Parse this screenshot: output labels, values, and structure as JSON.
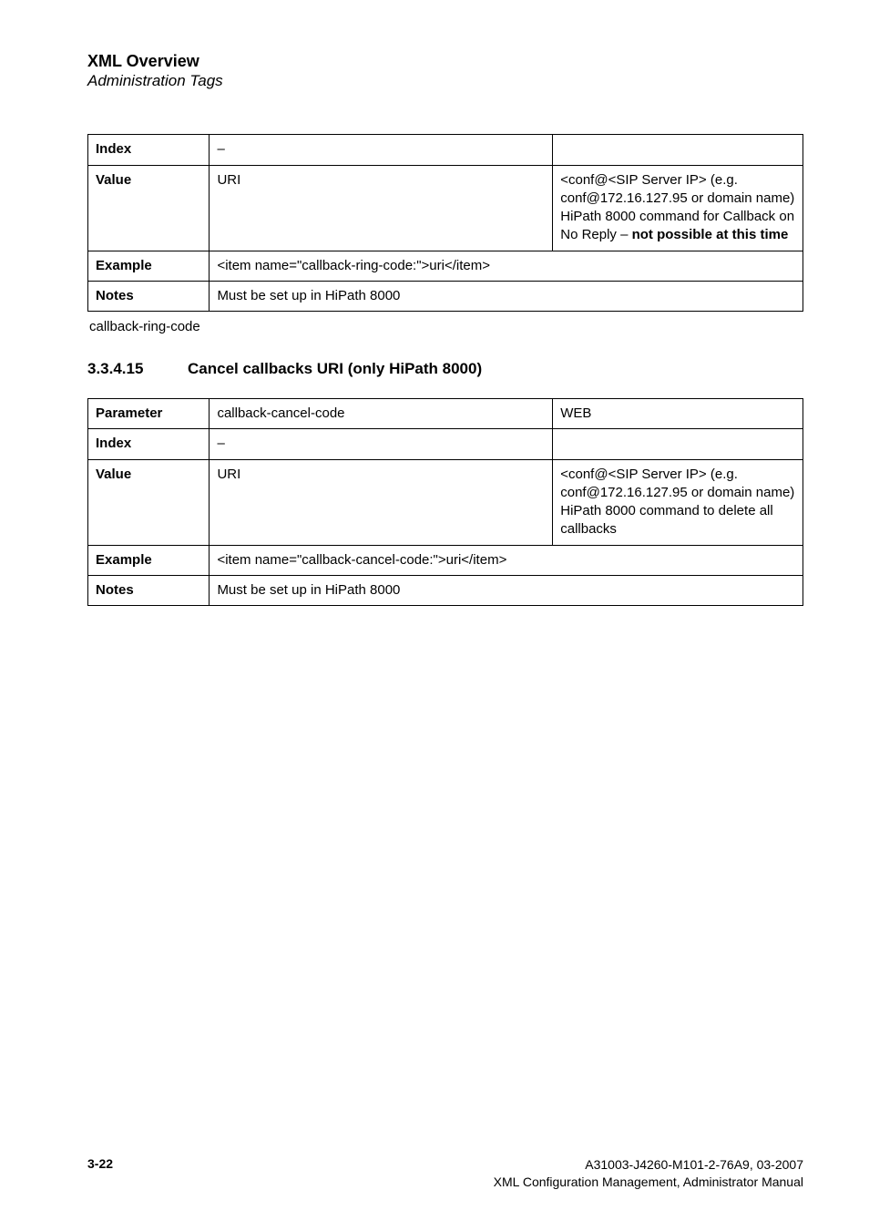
{
  "header": {
    "title": "XML Overview",
    "subtitle": "Administration Tags"
  },
  "table1": {
    "rows": {
      "index": {
        "label": "Index",
        "mid": "–",
        "right": ""
      },
      "value": {
        "label": "Value",
        "mid": "URI",
        "right": "<conf@<SIP Server IP>  (e.g. conf@172.16.127.95 or domain name)\nHiPath 8000 command for Callback on No Reply – ",
        "right_bold_tail": "not possible at this time"
      },
      "example": {
        "label": "Example",
        "mid": "<item name=\"callback-ring-code:\">uri</item>"
      },
      "notes": {
        "label": "Notes",
        "mid": "Must be set up in HiPath 8000"
      }
    }
  },
  "caption1": "callback-ring-code",
  "section": {
    "number": "3.3.4.15",
    "title": "Cancel callbacks URI (only HiPath 8000)"
  },
  "table2": {
    "rows": {
      "param": {
        "label": "Parameter",
        "mid": "callback-cancel-code",
        "right": "WEB"
      },
      "index": {
        "label": "Index",
        "mid": "–",
        "right": ""
      },
      "value": {
        "label": "Value",
        "mid": "URI",
        "right": "<conf@<SIP Server IP>  (e.g. conf@172.16.127.95 or domain name)\nHiPath 8000 command to delete all callbacks"
      },
      "example": {
        "label": "Example",
        "mid": "<item name=\"callback-cancel-code:\">uri</item>"
      },
      "notes": {
        "label": "Notes",
        "mid": "Must be set up in HiPath 8000"
      }
    }
  },
  "footer": {
    "page": "3-22",
    "line1": "A31003-J4260-M101-2-76A9, 03-2007",
    "line2": "XML Configuration Management, Administrator Manual"
  }
}
